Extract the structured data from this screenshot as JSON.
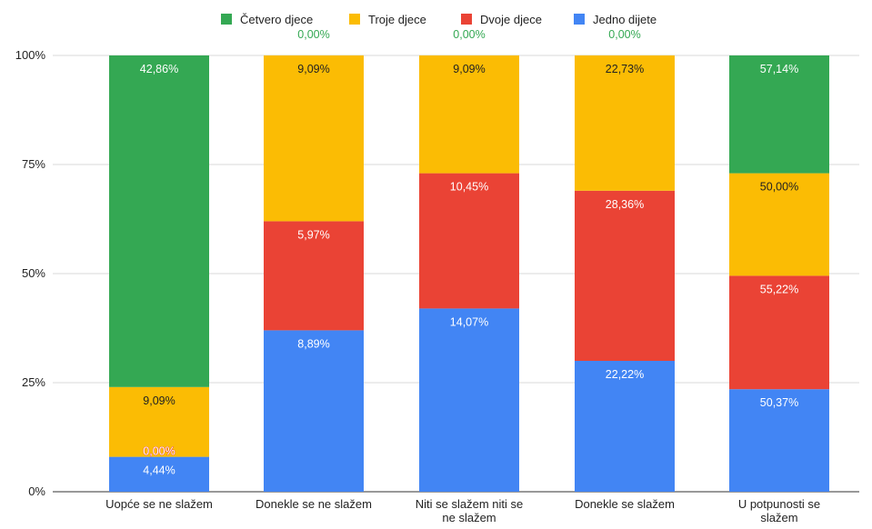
{
  "chart_data": {
    "type": "bar",
    "stacked": "percent",
    "categories": [
      "Uopće se ne slažem",
      "Donekle se ne slažem",
      "Niti se slažem niti se ne slažem",
      "Donekle se slažem",
      "U potpunosti se slažem"
    ],
    "category_lines": [
      [
        "Uopće se ne slažem"
      ],
      [
        "Donekle se ne slažem"
      ],
      [
        "Niti se slažem niti se",
        "ne slažem"
      ],
      [
        "Donekle se slažem"
      ],
      [
        "U potpunosti se",
        "slažem"
      ]
    ],
    "series": [
      {
        "name": "Jedno dijete",
        "color": "#4285F4",
        "shares": [
          0.08,
          0.37,
          0.42,
          0.3,
          0.235
        ],
        "labels": [
          "4,44%",
          "8,89%",
          "14,07%",
          "22,22%",
          "50,37%"
        ],
        "label_color": "#ffffff"
      },
      {
        "name": "Dvoje djece",
        "color": "#EA4335",
        "shares": [
          0.0,
          0.25,
          0.31,
          0.39,
          0.26
        ],
        "labels": [
          "0,00%",
          "5,97%",
          "10,45%",
          "28,36%",
          "55,22%"
        ],
        "label_color": "#ffffff"
      },
      {
        "name": "Troje djece",
        "color": "#FBBC04",
        "shares": [
          0.16,
          0.38,
          0.27,
          0.31,
          0.235
        ],
        "labels": [
          "9,09%",
          "9,09%",
          "9,09%",
          "22,73%",
          "50,00%"
        ],
        "label_color": "#222222"
      },
      {
        "name": "Četvero djece",
        "color": "#34A853",
        "shares": [
          0.76,
          0.0,
          0.0,
          0.0,
          0.27
        ],
        "labels": [
          "42,86%",
          "0,00%",
          "0,00%",
          "0,00%",
          "57,14%"
        ],
        "label_color": "#ffffff",
        "zero_label_color": "#34A853"
      }
    ],
    "zero_label_style": {
      "Dvoje djece": "#EA4335"
    },
    "y_ticks": [
      "0%",
      "25%",
      "50%",
      "75%",
      "100%"
    ],
    "ylim": [
      0,
      100
    ],
    "legend_order": [
      "Četvero djece",
      "Troje djece",
      "Dvoje djece",
      "Jedno dijete"
    ],
    "legend_position": "top",
    "grid": true
  }
}
